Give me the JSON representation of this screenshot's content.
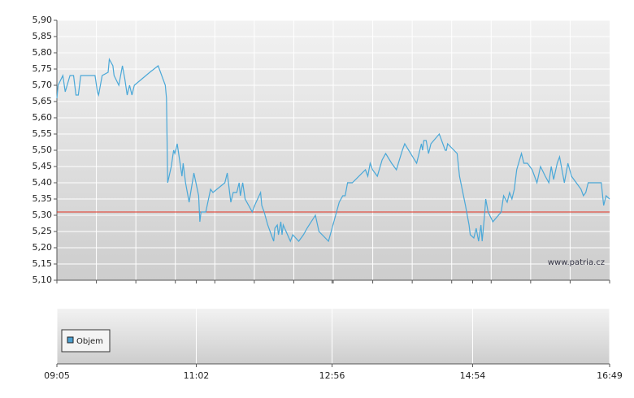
{
  "chart_data": {
    "type": "line",
    "watermark": "www.patria.cz",
    "volume_legend": "Objem",
    "volume_color": "#4a9fd0",
    "reference_line": {
      "value": 5.31,
      "color": "#e03020"
    },
    "xlim": [
      0,
      464
    ],
    "xticks": [
      {
        "value": 0,
        "label": "09:05"
      },
      {
        "value": 117,
        "label": "11:02"
      },
      {
        "value": 231,
        "label": "12:56"
      },
      {
        "value": 349,
        "label": "14:54"
      },
      {
        "value": 464,
        "label": "16:49"
      }
    ],
    "xgrid_divisions": 14,
    "ylim": [
      5.1,
      5.9
    ],
    "yticks": [
      {
        "value": 5.1,
        "label": "5,10"
      },
      {
        "value": 5.15,
        "label": "5,15"
      },
      {
        "value": 5.2,
        "label": "5,20"
      },
      {
        "value": 5.25,
        "label": "5,25"
      },
      {
        "value": 5.3,
        "label": "5,30"
      },
      {
        "value": 5.35,
        "label": "5,35"
      },
      {
        "value": 5.4,
        "label": "5,40"
      },
      {
        "value": 5.45,
        "label": "5,45"
      },
      {
        "value": 5.5,
        "label": "5,50"
      },
      {
        "value": 5.55,
        "label": "5,55"
      },
      {
        "value": 5.6,
        "label": "5,60"
      },
      {
        "value": 5.65,
        "label": "5,65"
      },
      {
        "value": 5.7,
        "label": "5,70"
      },
      {
        "value": 5.75,
        "label": "5,75"
      },
      {
        "value": 5.8,
        "label": "5,80"
      },
      {
        "value": 5.85,
        "label": "5,85"
      },
      {
        "value": 5.9,
        "label": "5,90"
      }
    ],
    "grid": true,
    "color": "#4aa8d8",
    "x": [
      0,
      1,
      5,
      7,
      11,
      14,
      16,
      18,
      20,
      25,
      29,
      32,
      34,
      35,
      38,
      43,
      44,
      47,
      48,
      52,
      55,
      57,
      59,
      61,
      63,
      65,
      78,
      85,
      91,
      92,
      93,
      96,
      98,
      99,
      101,
      103,
      105,
      106,
      108,
      111,
      115,
      119,
      120,
      121,
      125,
      129,
      131,
      141,
      143,
      146,
      148,
      151,
      153,
      154,
      156,
      158,
      164,
      166,
      171,
      172,
      174,
      177,
      180,
      182,
      183,
      185,
      186,
      188,
      189,
      190,
      196,
      198,
      203,
      207,
      210,
      217,
      220,
      228,
      231,
      234,
      237,
      240,
      242,
      244,
      248,
      259,
      261,
      263,
      265,
      269,
      273,
      276,
      281,
      285,
      290,
      292,
      302,
      304,
      306,
      307,
      308,
      310,
      312,
      314,
      321,
      326,
      327,
      328,
      336,
      338,
      343,
      345,
      346,
      347,
      350,
      352,
      354,
      356,
      357,
      359,
      360,
      362,
      366,
      373,
      375,
      378,
      380,
      382,
      384,
      386,
      390,
      392,
      395,
      399,
      403,
      406,
      410,
      413,
      415,
      417,
      420,
      422,
      426,
      429,
      432,
      436,
      440,
      442,
      444,
      446,
      457,
      459,
      461,
      464
    ],
    "values": [
      5.66,
      5.7,
      5.73,
      5.68,
      5.73,
      5.73,
      5.67,
      5.67,
      5.73,
      5.73,
      5.73,
      5.73,
      5.68,
      5.67,
      5.73,
      5.74,
      5.78,
      5.76,
      5.73,
      5.7,
      5.76,
      5.72,
      5.67,
      5.7,
      5.67,
      5.7,
      5.74,
      5.76,
      5.7,
      5.66,
      5.4,
      5.45,
      5.5,
      5.49,
      5.52,
      5.47,
      5.42,
      5.46,
      5.4,
      5.34,
      5.43,
      5.36,
      5.28,
      5.31,
      5.31,
      5.38,
      5.37,
      5.4,
      5.43,
      5.34,
      5.37,
      5.37,
      5.4,
      5.36,
      5.4,
      5.35,
      5.31,
      5.33,
      5.37,
      5.33,
      5.31,
      5.27,
      5.24,
      5.22,
      5.26,
      5.27,
      5.24,
      5.28,
      5.24,
      5.27,
      5.22,
      5.24,
      5.22,
      5.24,
      5.26,
      5.3,
      5.25,
      5.22,
      5.26,
      5.3,
      5.34,
      5.36,
      5.36,
      5.4,
      5.4,
      5.44,
      5.42,
      5.46,
      5.44,
      5.42,
      5.47,
      5.49,
      5.46,
      5.44,
      5.5,
      5.52,
      5.46,
      5.49,
      5.52,
      5.5,
      5.53,
      5.53,
      5.49,
      5.52,
      5.55,
      5.5,
      5.5,
      5.52,
      5.49,
      5.42,
      5.33,
      5.29,
      5.27,
      5.24,
      5.23,
      5.26,
      5.22,
      5.27,
      5.22,
      5.3,
      5.35,
      5.31,
      5.28,
      5.31,
      5.36,
      5.34,
      5.37,
      5.35,
      5.38,
      5.44,
      5.49,
      5.46,
      5.46,
      5.44,
      5.4,
      5.45,
      5.42,
      5.4,
      5.45,
      5.41,
      5.46,
      5.48,
      5.4,
      5.46,
      5.42,
      5.4,
      5.38,
      5.36,
      5.37,
      5.4,
      5.4,
      5.33,
      5.36,
      5.35
    ]
  }
}
